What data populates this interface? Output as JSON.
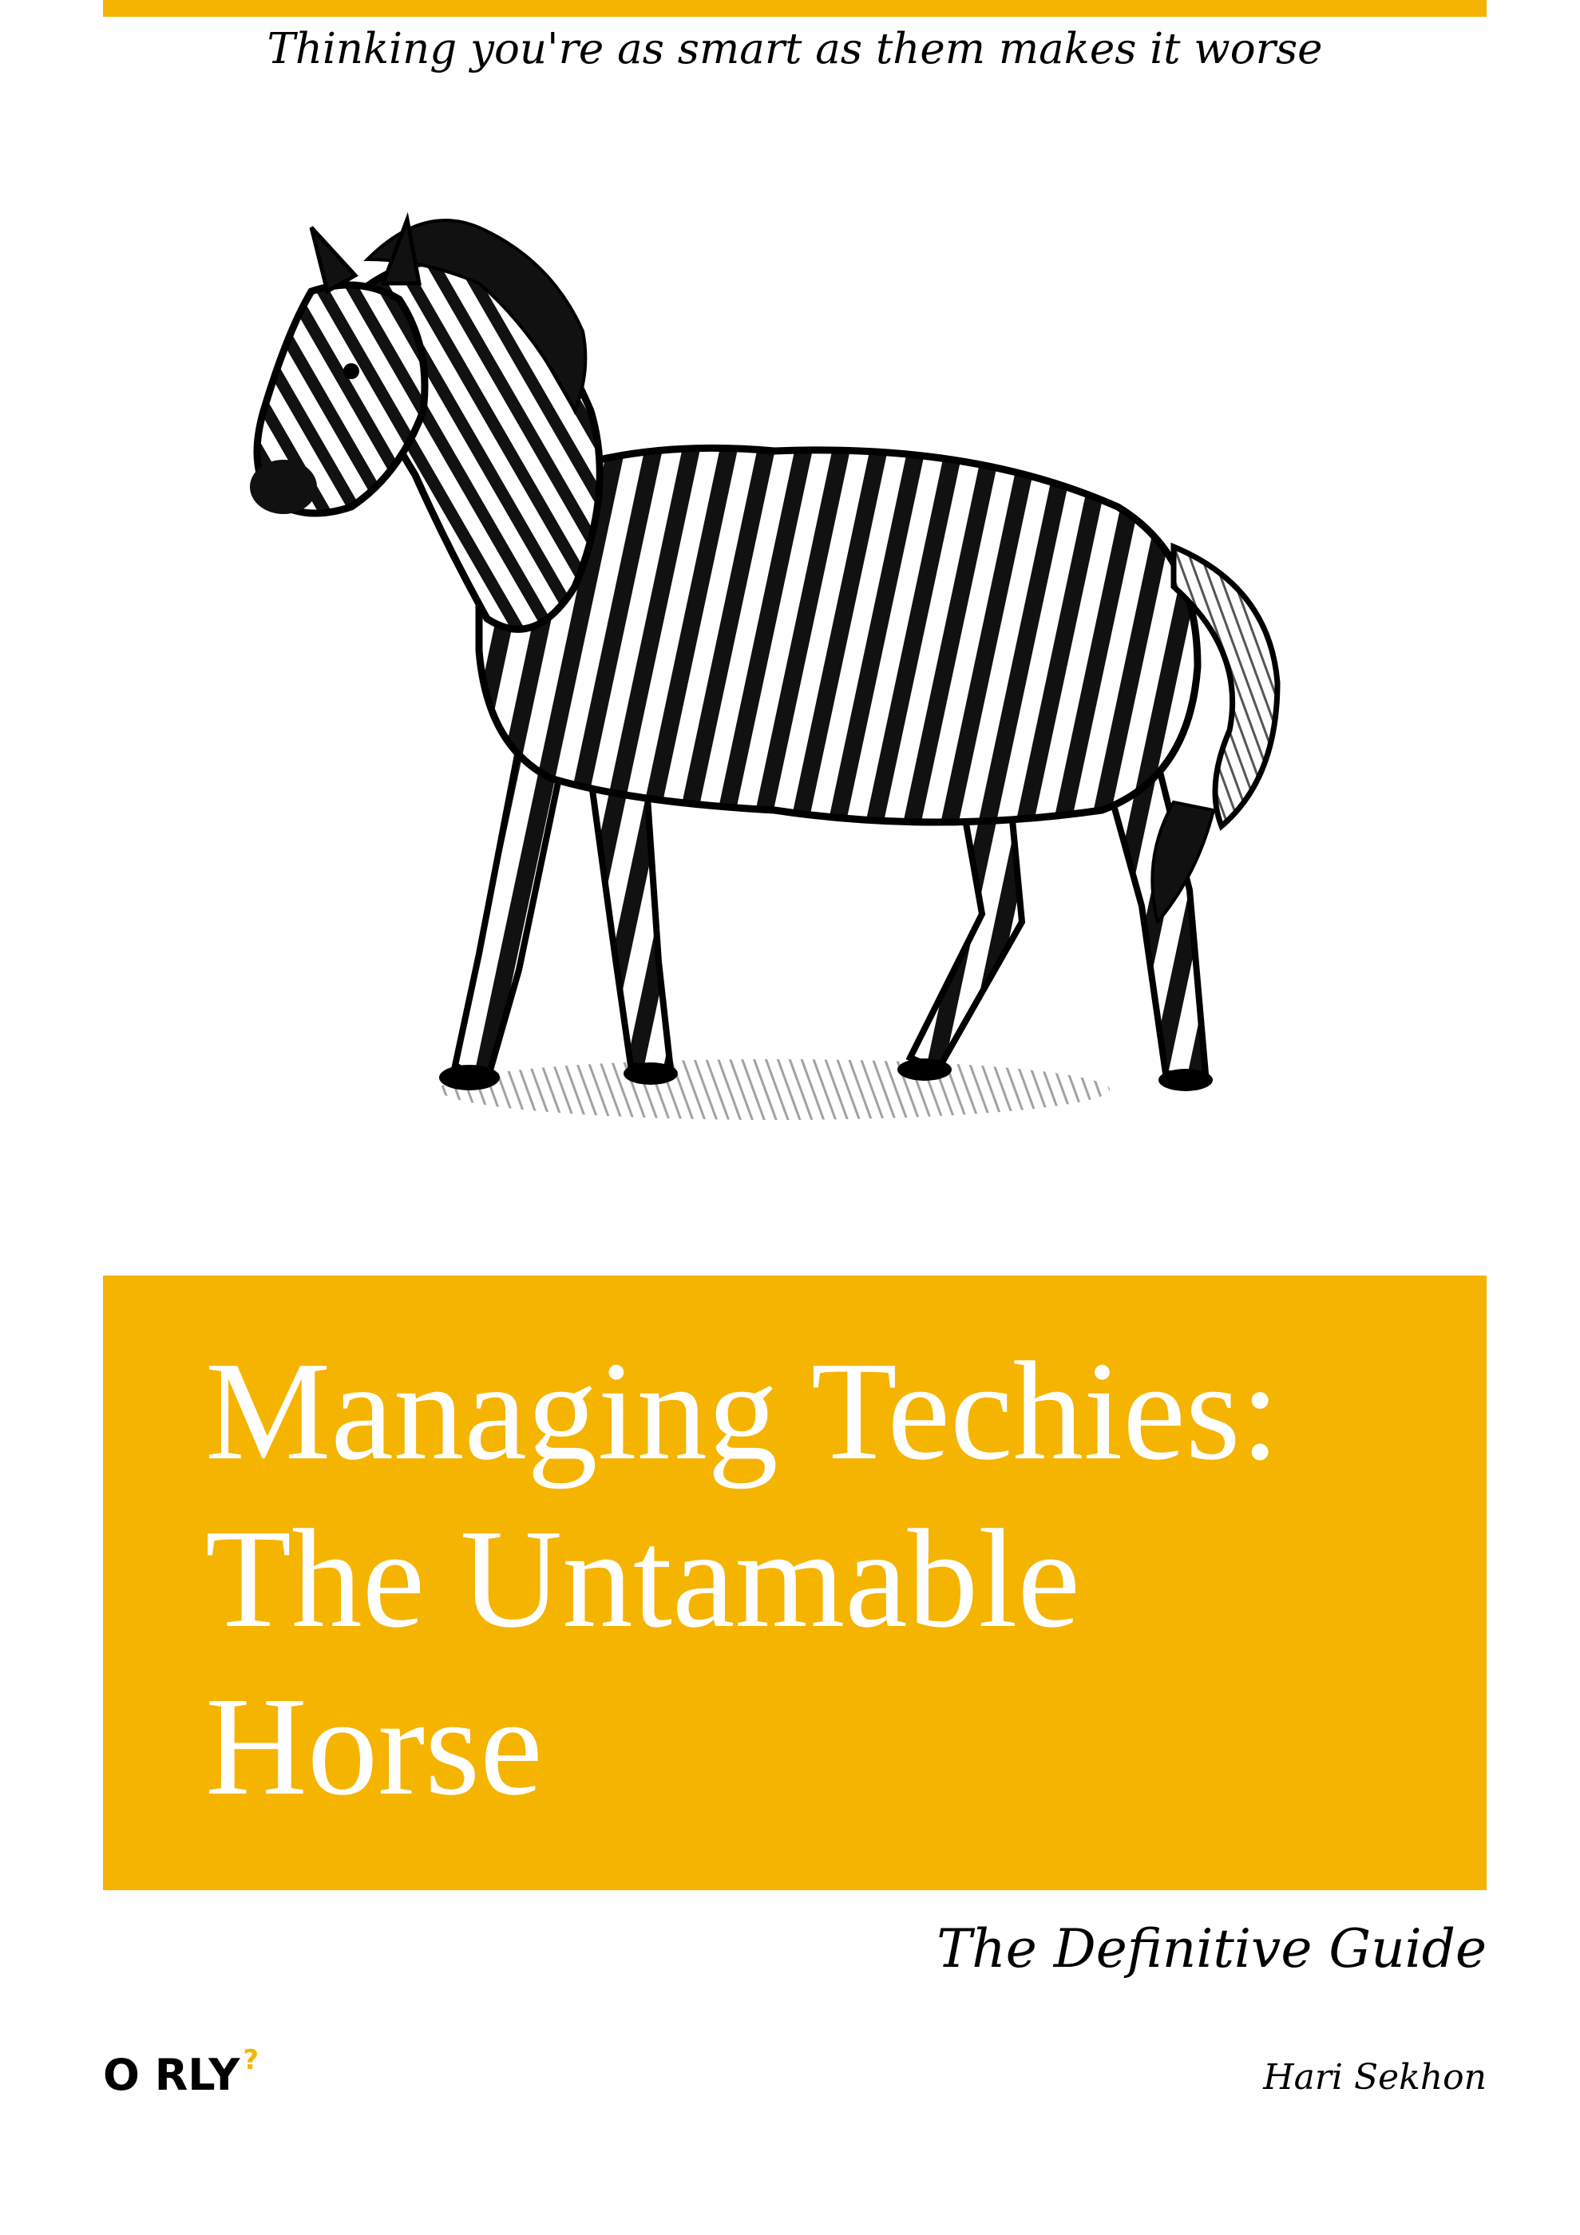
{
  "colors": {
    "accent": "#F5B400",
    "background": "#FFFFFF",
    "text": "#000000",
    "title_text": "#FFFFFF"
  },
  "cover": {
    "tagline": "Thinking you're as smart as them makes it worse",
    "illustration_icon": "zebra-illustration",
    "title_lines": [
      "Managing Techies:",
      "The Untamable",
      "Horse"
    ],
    "subtitle": "The Definitive Guide",
    "brand_main": "O RLY",
    "brand_mark": "?",
    "author": "Hari Sekhon"
  }
}
